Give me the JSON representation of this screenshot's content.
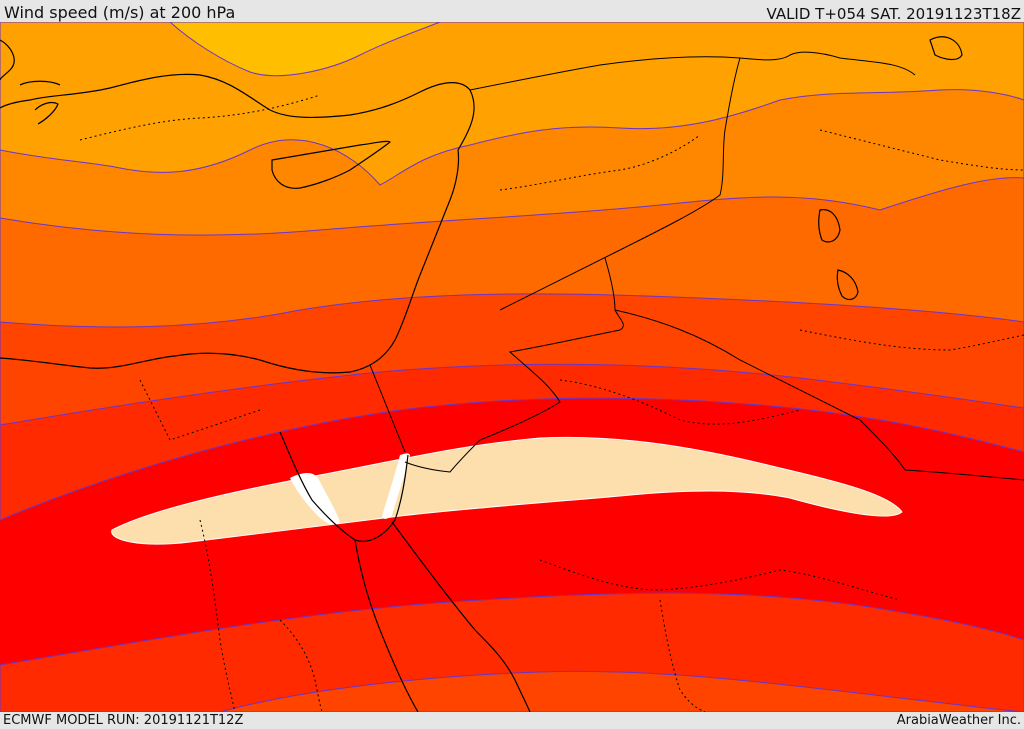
{
  "header": {
    "title": "Wind speed (m/s) at 200 hPa",
    "valid": "VALID T+054 SAT. 20191123T18Z"
  },
  "footer": {
    "model_run": "ECMWF MODEL RUN: 20191121T12Z",
    "credit": "ArabiaWeather Inc."
  },
  "palette": {
    "band_1": "#ffbf00",
    "band_2": "#ffa100",
    "band_3": "#ff8700",
    "band_4": "#ff6a00",
    "band_5": "#ff4400",
    "band_6": "#ff2a00",
    "band_7": "#ff0000",
    "jet_core": "#fddfae",
    "jet_max": "#ffffff",
    "contour_line": "#6a35c8",
    "coastline": "#000000"
  }
}
